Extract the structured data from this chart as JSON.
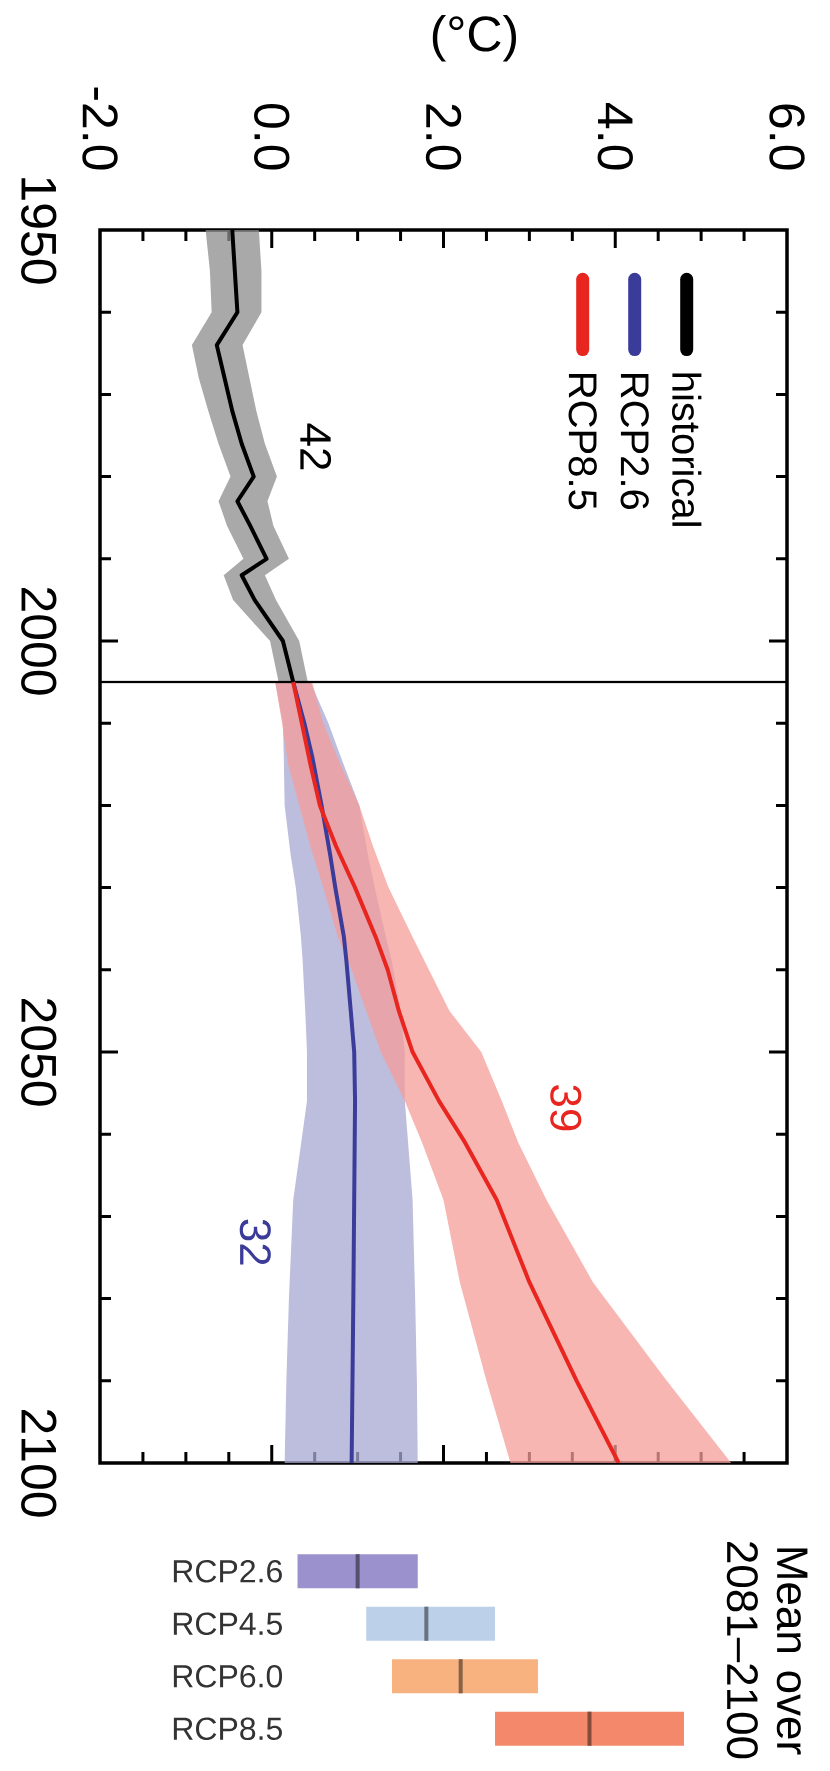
{
  "chart_data": [
    {
      "type": "line",
      "orientation": "horizontal",
      "xlabel": "(°C)",
      "xlim": [
        -2,
        6
      ],
      "ylim": [
        2100,
        1950
      ],
      "yticks": [
        1950,
        {
          "value": 1960,
          "label": null
        },
        {
          "value": 1970,
          "label": null
        },
        {
          "value": 1980,
          "label": null
        },
        {
          "value": 1990,
          "label": null
        },
        2000,
        {
          "value": 2010,
          "label": null
        },
        {
          "value": 2020,
          "label": null
        },
        {
          "value": 2030,
          "label": null
        },
        {
          "value": 2040,
          "label": null
        },
        2050,
        {
          "value": 2060,
          "label": null
        },
        {
          "value": 2070,
          "label": null
        },
        {
          "value": 2080,
          "label": null
        },
        {
          "value": 2090,
          "label": null
        },
        2100
      ],
      "xticks": [
        {
          "value": -2,
          "label": "-2.0"
        },
        {
          "value": -1.5,
          "label": null
        },
        {
          "value": -1,
          "label": null
        },
        {
          "value": -0.5,
          "label": null
        },
        {
          "value": 0,
          "label": "0.0"
        },
        {
          "value": 0.5,
          "label": null
        },
        {
          "value": 1,
          "label": null
        },
        {
          "value": 1.5,
          "label": null
        },
        {
          "value": 2,
          "label": "2.0"
        },
        {
          "value": 2.5,
          "label": null
        },
        {
          "value": 3,
          "label": null
        },
        {
          "value": 3.5,
          "label": null
        },
        {
          "value": 4,
          "label": "4.0"
        },
        {
          "value": 4.5,
          "label": null
        },
        {
          "value": 5,
          "label": null
        },
        {
          "value": 5.5,
          "label": null
        },
        {
          "value": 6,
          "label": "6.0"
        }
      ],
      "legend": "top right",
      "ref_lines": [
        {
          "axis": "y",
          "value": 2005
        }
      ],
      "annotations": [
        "42",
        "32",
        "39"
      ],
      "series": [
        {
          "name": "historical",
          "color": "#000000",
          "x": [
            1950,
            1955,
            1960,
            1964,
            1968,
            1972,
            1976,
            1980,
            1983,
            1986,
            1990,
            1992,
            1995,
            2000,
            2005
          ],
          "values": [
            -0.46,
            -0.43,
            -0.4,
            -0.64,
            -0.55,
            -0.46,
            -0.35,
            -0.21,
            -0.4,
            -0.25,
            -0.06,
            -0.35,
            -0.2,
            0.13,
            0.25
          ],
          "lower": [
            -0.77,
            -0.72,
            -0.7,
            -0.93,
            -0.85,
            -0.74,
            -0.62,
            -0.48,
            -0.62,
            -0.52,
            -0.33,
            -0.56,
            -0.45,
            -0.02,
            0.08
          ],
          "upper": [
            -0.15,
            -0.12,
            -0.12,
            -0.34,
            -0.26,
            -0.18,
            -0.08,
            0.06,
            -0.05,
            0.02,
            0.2,
            -0.08,
            0.05,
            0.32,
            0.42
          ]
        },
        {
          "name": "RCP2.6",
          "color": "#3b3b9a",
          "x": [
            2005,
            2010,
            2014,
            2020,
            2026,
            2030,
            2036,
            2039,
            2045,
            2050,
            2056,
            2068,
            2080,
            2090,
            2100
          ],
          "values": [
            0.25,
            0.38,
            0.47,
            0.58,
            0.68,
            0.74,
            0.84,
            0.87,
            0.92,
            0.96,
            0.97,
            0.96,
            0.95,
            0.94,
            0.93
          ],
          "lower": [
            0.04,
            0.13,
            0.14,
            0.15,
            0.22,
            0.28,
            0.34,
            0.36,
            0.39,
            0.41,
            0.41,
            0.25,
            0.2,
            0.17,
            0.15
          ],
          "upper": [
            0.45,
            0.66,
            0.8,
            1.02,
            1.12,
            1.2,
            1.33,
            1.4,
            1.5,
            1.55,
            1.55,
            1.64,
            1.67,
            1.69,
            1.7
          ]
        },
        {
          "name": "RCP8.5",
          "color": "#e8251e",
          "x": [
            2005,
            2010,
            2015,
            2020,
            2025,
            2030,
            2036,
            2040,
            2045,
            2050,
            2056,
            2061,
            2068,
            2078,
            2090,
            2100
          ],
          "values": [
            0.25,
            0.35,
            0.45,
            0.56,
            0.75,
            0.97,
            1.21,
            1.35,
            1.48,
            1.64,
            1.95,
            2.25,
            2.62,
            3.0,
            3.55,
            4.04
          ],
          "lower": [
            0.04,
            0.12,
            0.19,
            0.32,
            0.45,
            0.6,
            0.77,
            0.93,
            1.1,
            1.27,
            1.55,
            1.75,
            2.0,
            2.19,
            2.5,
            2.78
          ],
          "upper": [
            0.47,
            0.6,
            0.8,
            1.02,
            1.18,
            1.36,
            1.64,
            1.83,
            2.07,
            2.44,
            2.68,
            2.87,
            3.2,
            3.74,
            4.6,
            5.35
          ]
        }
      ]
    },
    {
      "type": "box",
      "orientation": "horizontal",
      "title": "Mean over 2081–2100",
      "categories": [
        "RCP2.6",
        "RCP4.5",
        "RCP6.0",
        "RCP8.5"
      ],
      "colors": [
        "#9b91cc",
        "#bdd0ea",
        "#f8b27f",
        "#f3896a"
      ],
      "boxes": [
        {
          "low": 0.3,
          "q1": 0.3,
          "median": 1.0,
          "q3": 1.7,
          "high": 1.7
        },
        {
          "low": 1.1,
          "q1": 1.1,
          "median": 1.8,
          "q3": 2.6,
          "high": 2.6
        },
        {
          "low": 1.4,
          "q1": 1.4,
          "median": 2.2,
          "q3": 3.1,
          "high": 3.1
        },
        {
          "low": 2.6,
          "q1": 2.6,
          "median": 3.7,
          "q3": 4.8,
          "high": 4.8
        }
      ],
      "xlim": [
        -2,
        6
      ],
      "tick_labels": "y"
    }
  ]
}
